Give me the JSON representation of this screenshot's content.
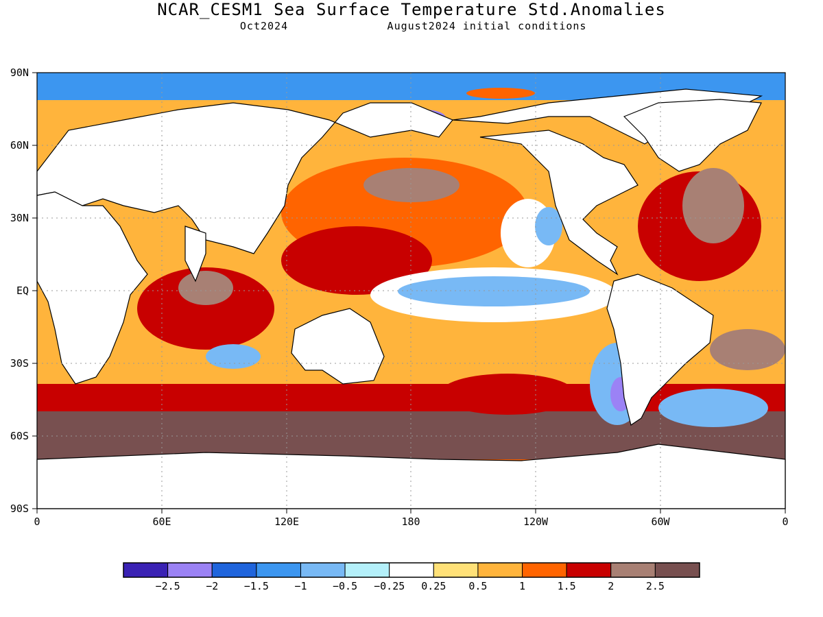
{
  "header": {
    "title": "NCAR_CESM1 Sea Surface Temperature Std.Anomalies",
    "valid_month": "Oct2024",
    "init": "August2024 initial conditions"
  },
  "map": {
    "lat_labels": [
      "90N",
      "60N",
      "30N",
      "EQ",
      "30S",
      "60S",
      "90S"
    ],
    "lon_labels": [
      "0",
      "60E",
      "120E",
      "180",
      "120W",
      "60W",
      "0"
    ]
  },
  "colorbar": {
    "colors": [
      "#3a22b4",
      "#9b82f5",
      "#1f64dc",
      "#3c96f0",
      "#78b9f5",
      "#b4f0fa",
      "#ffffff",
      "#ffe178",
      "#ffb43c",
      "#ff6400",
      "#c80000",
      "#a88074",
      "#785050"
    ],
    "labels": [
      "−2.5",
      "−2",
      "−1.5",
      "−1",
      "−0.5",
      "−0.25",
      "0.25",
      "0.5",
      "1",
      "1.5",
      "2",
      "2.5"
    ]
  }
}
